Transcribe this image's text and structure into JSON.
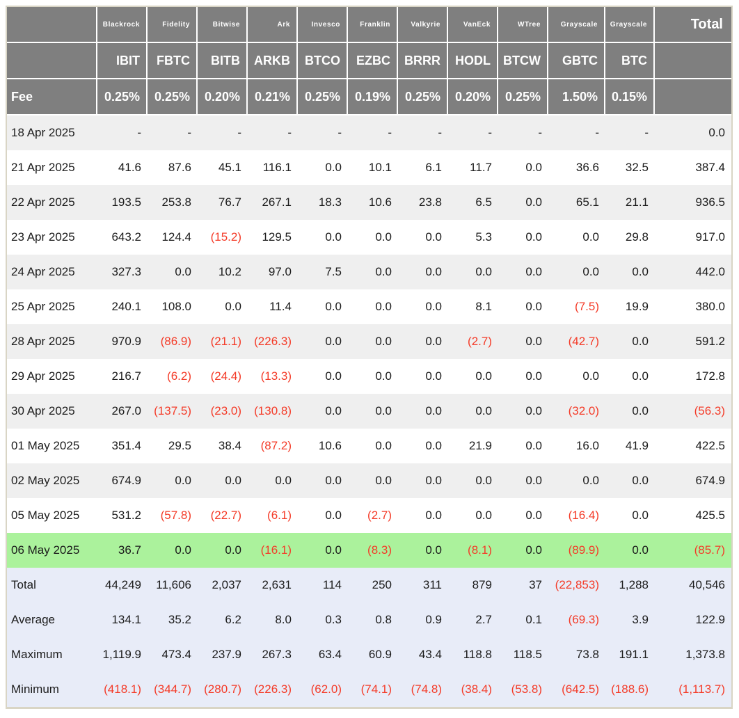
{
  "colors": {
    "header_gray": "#7f7f7f",
    "stripe_gray": "#efefef",
    "highlight_green": "#abf29c",
    "summary_lavender": "#e8ecf8",
    "negative_red": "#f43b28",
    "outer_border": "#d9d5c5",
    "header_text": "#ffffff",
    "body_text": "#1b1b1b"
  },
  "chart_data": {
    "type": "table",
    "corner": {
      "fee_label": "Fee",
      "total_label": "Total"
    },
    "columns": [
      {
        "brand": "Blackrock",
        "ticker": "IBIT",
        "fee": "0.25%"
      },
      {
        "brand": "Fidelity",
        "ticker": "FBTC",
        "fee": "0.25%"
      },
      {
        "brand": "Bitwise",
        "ticker": "BITB",
        "fee": "0.20%"
      },
      {
        "brand": "Ark",
        "ticker": "ARKB",
        "fee": "0.21%"
      },
      {
        "brand": "Invesco",
        "ticker": "BTCO",
        "fee": "0.25%"
      },
      {
        "brand": "Franklin",
        "ticker": "EZBC",
        "fee": "0.19%"
      },
      {
        "brand": "Valkyrie",
        "ticker": "BRRR",
        "fee": "0.25%"
      },
      {
        "brand": "VanEck",
        "ticker": "HODL",
        "fee": "0.20%"
      },
      {
        "brand": "WTree",
        "ticker": "BTCW",
        "fee": "0.25%"
      },
      {
        "brand": "Grayscale",
        "ticker": "GBTC",
        "fee": "1.50%"
      },
      {
        "brand": "Grayscale",
        "ticker": "BTC",
        "fee": "0.15%"
      }
    ],
    "rows": [
      {
        "label": "18 Apr 2025",
        "highlight": false,
        "values": [
          "-",
          "-",
          "-",
          "-",
          "-",
          "-",
          "-",
          "-",
          "-",
          "-",
          "-",
          "0.0"
        ]
      },
      {
        "label": "21 Apr 2025",
        "highlight": false,
        "values": [
          "41.6",
          "87.6",
          "45.1",
          "116.1",
          "0.0",
          "10.1",
          "6.1",
          "11.7",
          "0.0",
          "36.6",
          "32.5",
          "387.4"
        ]
      },
      {
        "label": "22 Apr 2025",
        "highlight": false,
        "values": [
          "193.5",
          "253.8",
          "76.7",
          "267.1",
          "18.3",
          "10.6",
          "23.8",
          "6.5",
          "0.0",
          "65.1",
          "21.1",
          "936.5"
        ]
      },
      {
        "label": "23 Apr 2025",
        "highlight": false,
        "values": [
          "643.2",
          "124.4",
          "(15.2)",
          "129.5",
          "0.0",
          "0.0",
          "0.0",
          "5.3",
          "0.0",
          "0.0",
          "29.8",
          "917.0"
        ]
      },
      {
        "label": "24 Apr 2025",
        "highlight": false,
        "values": [
          "327.3",
          "0.0",
          "10.2",
          "97.0",
          "7.5",
          "0.0",
          "0.0",
          "0.0",
          "0.0",
          "0.0",
          "0.0",
          "442.0"
        ]
      },
      {
        "label": "25 Apr 2025",
        "highlight": false,
        "values": [
          "240.1",
          "108.0",
          "0.0",
          "11.4",
          "0.0",
          "0.0",
          "0.0",
          "8.1",
          "0.0",
          "(7.5)",
          "19.9",
          "380.0"
        ]
      },
      {
        "label": "28 Apr 2025",
        "highlight": false,
        "values": [
          "970.9",
          "(86.9)",
          "(21.1)",
          "(226.3)",
          "0.0",
          "0.0",
          "0.0",
          "(2.7)",
          "0.0",
          "(42.7)",
          "0.0",
          "591.2"
        ]
      },
      {
        "label": "29 Apr 2025",
        "highlight": false,
        "values": [
          "216.7",
          "(6.2)",
          "(24.4)",
          "(13.3)",
          "0.0",
          "0.0",
          "0.0",
          "0.0",
          "0.0",
          "0.0",
          "0.0",
          "172.8"
        ]
      },
      {
        "label": "30 Apr 2025",
        "highlight": false,
        "values": [
          "267.0",
          "(137.5)",
          "(23.0)",
          "(130.8)",
          "0.0",
          "0.0",
          "0.0",
          "0.0",
          "0.0",
          "(32.0)",
          "0.0",
          "(56.3)"
        ]
      },
      {
        "label": "01 May 2025",
        "highlight": false,
        "values": [
          "351.4",
          "29.5",
          "38.4",
          "(87.2)",
          "10.6",
          "0.0",
          "0.0",
          "21.9",
          "0.0",
          "16.0",
          "41.9",
          "422.5"
        ]
      },
      {
        "label": "02 May 2025",
        "highlight": false,
        "values": [
          "674.9",
          "0.0",
          "0.0",
          "0.0",
          "0.0",
          "0.0",
          "0.0",
          "0.0",
          "0.0",
          "0.0",
          "0.0",
          "674.9"
        ]
      },
      {
        "label": "05 May 2025",
        "highlight": false,
        "values": [
          "531.2",
          "(57.8)",
          "(22.7)",
          "(6.1)",
          "0.0",
          "(2.7)",
          "0.0",
          "0.0",
          "0.0",
          "(16.4)",
          "0.0",
          "425.5"
        ]
      },
      {
        "label": "06 May 2025",
        "highlight": true,
        "values": [
          "36.7",
          "0.0",
          "0.0",
          "(16.1)",
          "0.0",
          "(8.3)",
          "0.0",
          "(8.1)",
          "0.0",
          "(89.9)",
          "0.0",
          "(85.7)"
        ]
      }
    ],
    "summary": [
      {
        "label": "Total",
        "values": [
          "44,249",
          "11,606",
          "2,037",
          "2,631",
          "114",
          "250",
          "311",
          "879",
          "37",
          "(22,853)",
          "1,288",
          "40,546"
        ]
      },
      {
        "label": "Average",
        "values": [
          "134.1",
          "35.2",
          "6.2",
          "8.0",
          "0.3",
          "0.8",
          "0.9",
          "2.7",
          "0.1",
          "(69.3)",
          "3.9",
          "122.9"
        ]
      },
      {
        "label": "Maximum",
        "values": [
          "1,119.9",
          "473.4",
          "237.9",
          "267.3",
          "63.4",
          "60.9",
          "43.4",
          "118.8",
          "118.5",
          "73.8",
          "191.1",
          "1,373.8"
        ]
      },
      {
        "label": "Minimum",
        "values": [
          "(418.1)",
          "(344.7)",
          "(280.7)",
          "(226.3)",
          "(62.0)",
          "(74.1)",
          "(74.8)",
          "(38.4)",
          "(53.8)",
          "(642.5)",
          "(188.6)",
          "(1,113.7)"
        ]
      }
    ]
  }
}
